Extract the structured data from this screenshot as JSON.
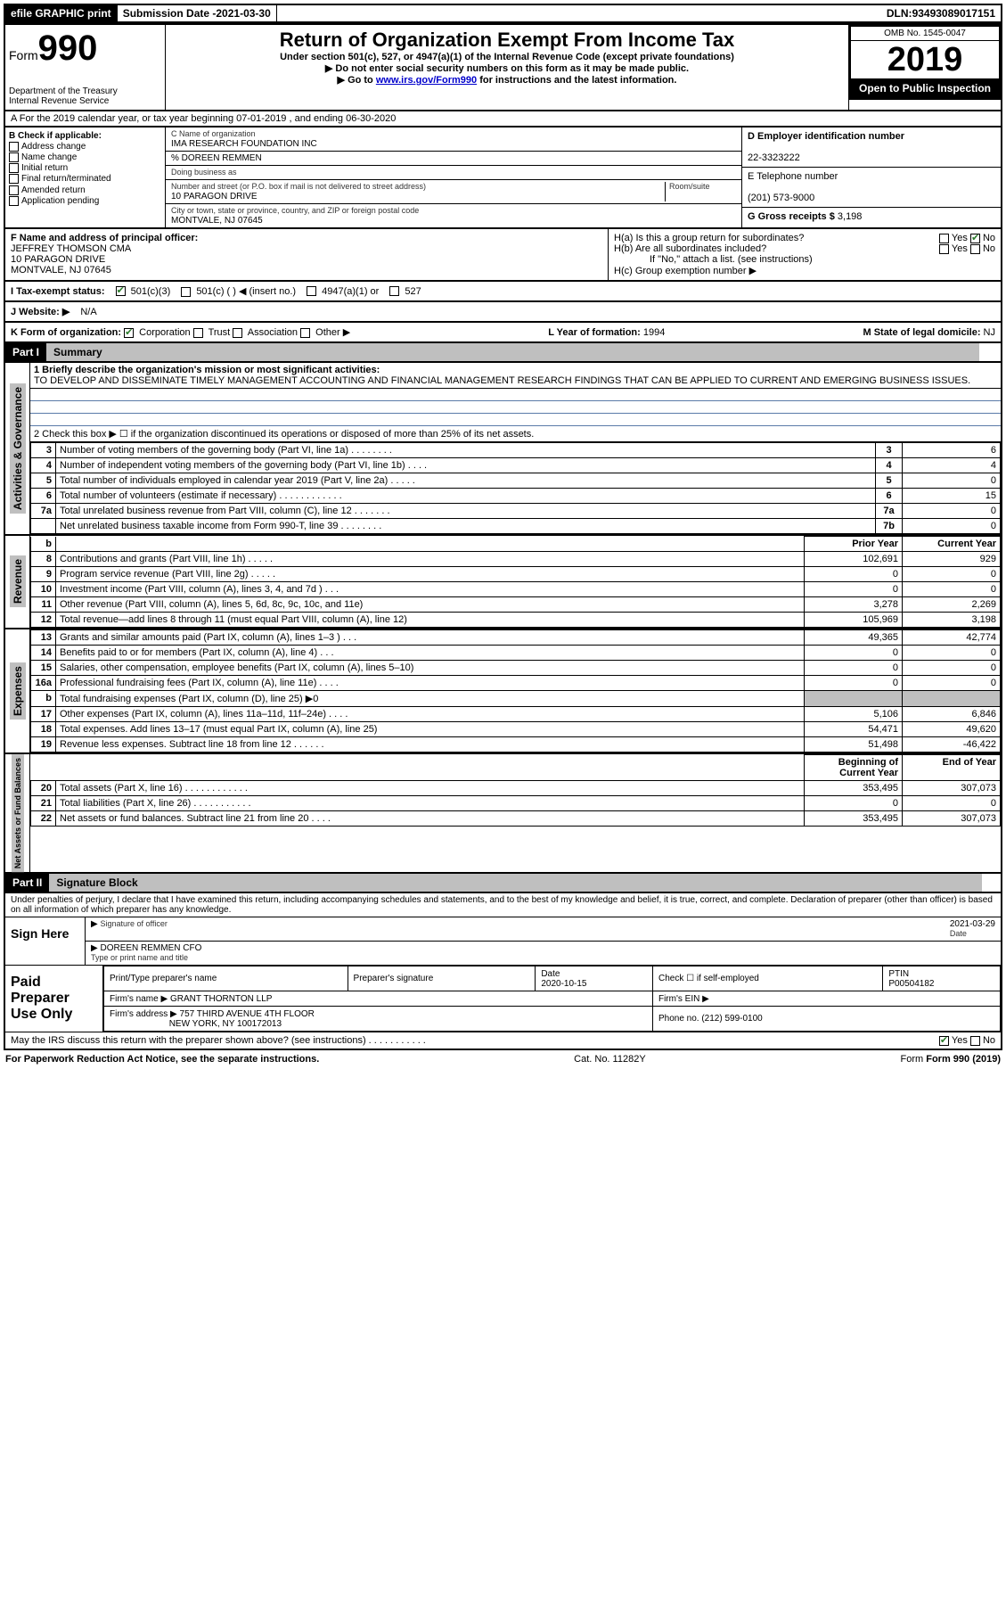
{
  "topbar": {
    "efile": "efile GRAPHIC print",
    "subdate_label": "Submission Date - ",
    "subdate": "2021-03-30",
    "dln_label": "DLN: ",
    "dln": "93493089017151"
  },
  "header": {
    "form_label": "Form",
    "form_num": "990",
    "title": "Return of Organization Exempt From Income Tax",
    "sub1": "Under section 501(c), 527, or 4947(a)(1) of the Internal Revenue Code (except private foundations)",
    "sub2": "▶ Do not enter social security numbers on this form as it may be made public.",
    "sub3_prefix": "▶ Go to ",
    "sub3_link": "www.irs.gov/Form990",
    "sub3_suffix": " for instructions and the latest information.",
    "dept": "Department of the Treasury\nInternal Revenue Service",
    "omb": "OMB No. 1545-0047",
    "year": "2019",
    "open": "Open to Public Inspection"
  },
  "period": {
    "text": "A For the 2019 calendar year, or tax year beginning 07-01-2019   , and ending 06-30-2020"
  },
  "sectionB": {
    "label": "B Check if applicable:",
    "addr": "Address change",
    "name": "Name change",
    "initial": "Initial return",
    "final": "Final return/terminated",
    "amended": "Amended return",
    "app": "Application pending"
  },
  "sectionC": {
    "name_label": "C Name of organization",
    "name": "IMA RESEARCH FOUNDATION INC",
    "care_label": "% DOREEN REMMEN",
    "dba_label": "Doing business as",
    "street_label": "Number and street (or P.O. box if mail is not delivered to street address)",
    "room_label": "Room/suite",
    "street": "10 PARAGON DRIVE",
    "city_label": "City or town, state or province, country, and ZIP or foreign postal code",
    "city": "MONTVALE, NJ  07645"
  },
  "sectionD": {
    "label": "D Employer identification number",
    "value": "22-3323222"
  },
  "sectionE": {
    "label": "E Telephone number",
    "value": "(201) 573-9000"
  },
  "sectionG": {
    "label": "G Gross receipts $ ",
    "value": "3,198"
  },
  "sectionF": {
    "label": "F Name and address of principal officer:",
    "name": "JEFFREY THOMSON CMA",
    "street": "10 PARAGON DRIVE",
    "city": "MONTVALE, NJ  07645"
  },
  "sectionH": {
    "ha": "H(a)  Is this a group return for subordinates?",
    "hb": "H(b)  Are all subordinates included?",
    "hb_note": "If \"No,\" attach a list. (see instructions)",
    "hc": "H(c)  Group exemption number ▶",
    "yes": "Yes",
    "no": "No"
  },
  "taxrow": {
    "label": "I   Tax-exempt status:",
    "o1": "501(c)(3)",
    "o2": "501(c) (  ) ◀ (insert no.)",
    "o3": "4947(a)(1) or",
    "o4": "527"
  },
  "website": {
    "label": "J   Website: ▶",
    "value": "N/A"
  },
  "korg": {
    "label": "K Form of organization:",
    "corp": "Corporation",
    "trust": "Trust",
    "assoc": "Association",
    "other": "Other ▶",
    "l_label": "L Year of formation: ",
    "l_val": "1994",
    "m_label": "M State of legal domicile: ",
    "m_val": "NJ"
  },
  "part1": {
    "num": "Part I",
    "title": "Summary"
  },
  "summary": {
    "line1_label": "1  Briefly describe the organization's mission or most significant activities:",
    "line1_text": "TO DEVELOP AND DISSEMINATE TIMELY MANAGEMENT ACCOUNTING AND FINANCIAL MANAGEMENT RESEARCH FINDINGS THAT CAN BE APPLIED TO CURRENT AND EMERGING BUSINESS ISSUES.",
    "line2": "2   Check this box ▶ ☐  if the organization discontinued its operations or disposed of more than 25% of its net assets.",
    "rows_top": [
      {
        "n": "3",
        "t": "Number of voting members of the governing body (Part VI, line 1a)   .   .   .   .   .   .   .   .",
        "lab": "3",
        "v": "6"
      },
      {
        "n": "4",
        "t": "Number of independent voting members of the governing body (Part VI, line 1b)   .   .   .   .",
        "lab": "4",
        "v": "4"
      },
      {
        "n": "5",
        "t": "Total number of individuals employed in calendar year 2019 (Part V, line 2a)   .   .   .   .   .",
        "lab": "5",
        "v": "0"
      },
      {
        "n": "6",
        "t": "Total number of volunteers (estimate if necessary)   .   .   .   .   .   .   .   .   .   .   .   .",
        "lab": "6",
        "v": "15"
      },
      {
        "n": "7a",
        "t": "Total unrelated business revenue from Part VIII, column (C), line 12   .   .   .   .   .   .   .",
        "lab": "7a",
        "v": "0"
      },
      {
        "n": "",
        "t": "Net unrelated business taxable income from Form 990-T, line 39   .   .   .   .   .   .   .   .",
        "lab": "7b",
        "v": "0"
      }
    ],
    "prior_label": "Prior Year",
    "current_label": "Current Year",
    "rev_rows": [
      {
        "n": "8",
        "t": "Contributions and grants (Part VIII, line 1h)   .   .   .   .   .",
        "p": "102,691",
        "c": "929"
      },
      {
        "n": "9",
        "t": "Program service revenue (Part VIII, line 2g)   .   .   .   .   .",
        "p": "0",
        "c": "0"
      },
      {
        "n": "10",
        "t": "Investment income (Part VIII, column (A), lines 3, 4, and 7d )   .   .   .",
        "p": "0",
        "c": "0"
      },
      {
        "n": "11",
        "t": "Other revenue (Part VIII, column (A), lines 5, 6d, 8c, 9c, 10c, and 11e)",
        "p": "3,278",
        "c": "2,269"
      },
      {
        "n": "12",
        "t": "Total revenue—add lines 8 through 11 (must equal Part VIII, column (A), line 12)",
        "p": "105,969",
        "c": "3,198"
      }
    ],
    "exp_rows": [
      {
        "n": "13",
        "t": "Grants and similar amounts paid (Part IX, column (A), lines 1–3 )   .   .   .",
        "p": "49,365",
        "c": "42,774"
      },
      {
        "n": "14",
        "t": "Benefits paid to or for members (Part IX, column (A), line 4)   .   .   .",
        "p": "0",
        "c": "0"
      },
      {
        "n": "15",
        "t": "Salaries, other compensation, employee benefits (Part IX, column (A), lines 5–10)",
        "p": "0",
        "c": "0"
      },
      {
        "n": "16a",
        "t": "Professional fundraising fees (Part IX, column (A), line 11e)   .   .   .   .",
        "p": "0",
        "c": "0"
      },
      {
        "n": "b",
        "t": "Total fundraising expenses (Part IX, column (D), line 25) ▶0",
        "p": "",
        "c": ""
      },
      {
        "n": "17",
        "t": "Other expenses (Part IX, column (A), lines 11a–11d, 11f–24e)   .   .   .   .",
        "p": "5,106",
        "c": "6,846"
      },
      {
        "n": "18",
        "t": "Total expenses. Add lines 13–17 (must equal Part IX, column (A), line 25)",
        "p": "54,471",
        "c": "49,620"
      },
      {
        "n": "19",
        "t": "Revenue less expenses. Subtract line 18 from line 12   .   .   .   .   .   .",
        "p": "51,498",
        "c": "-46,422"
      }
    ],
    "boy_label": "Beginning of Current Year",
    "eoy_label": "End of Year",
    "na_rows": [
      {
        "n": "20",
        "t": "Total assets (Part X, line 16)   .   .   .   .   .   .   .   .   .   .   .   .",
        "p": "353,495",
        "c": "307,073"
      },
      {
        "n": "21",
        "t": "Total liabilities (Part X, line 26)   .   .   .   .   .   .   .   .   .   .   .",
        "p": "0",
        "c": "0"
      },
      {
        "n": "22",
        "t": "Net assets or fund balances. Subtract line 21 from line 20   .   .   .   .",
        "p": "353,495",
        "c": "307,073"
      }
    ]
  },
  "sidebars": {
    "act": "Activities & Governance",
    "rev": "Revenue",
    "exp": "Expenses",
    "na": "Net Assets or Fund Balances"
  },
  "part2": {
    "num": "Part II",
    "title": "Signature Block"
  },
  "sig": {
    "decl": "Under penalties of perjury, I declare that I have examined this return, including accompanying schedules and statements, and to the best of my knowledge and belief, it is true, correct, and complete. Declaration of preparer (other than officer) is based on all information of which preparer has any knowledge.",
    "sign_here": "Sign Here",
    "sig_officer": "Signature of officer",
    "date_label": "Date",
    "date": "2021-03-29",
    "name": "DOREEN REMMEN CFO",
    "name_label": "Type or print name and title"
  },
  "prep": {
    "label": "Paid Preparer Use Only",
    "c1": "Print/Type preparer's name",
    "c2": "Preparer's signature",
    "c3": "Date",
    "c3v": "2020-10-15",
    "c4": "Check ☐ if self-employed",
    "c5": "PTIN",
    "c5v": "P00504182",
    "firm_label": "Firm's name    ▶",
    "firm": "GRANT THORNTON LLP",
    "ein_label": "Firm's EIN ▶",
    "addr_label": "Firm's address ▶",
    "addr1": "757 THIRD AVENUE 4TH FLOOR",
    "addr2": "NEW YORK, NY  100172013",
    "phone_label": "Phone no. ",
    "phone": "(212) 599-0100",
    "discuss": "May the IRS discuss this return with the preparer shown above? (see instructions)   .   .   .   .   .   .   .   .   .   .   .",
    "yes": "Yes",
    "no": "No"
  },
  "footer": {
    "pra": "For Paperwork Reduction Act Notice, see the separate instructions.",
    "cat": "Cat. No. 11282Y",
    "form": "Form 990 (2019)"
  }
}
